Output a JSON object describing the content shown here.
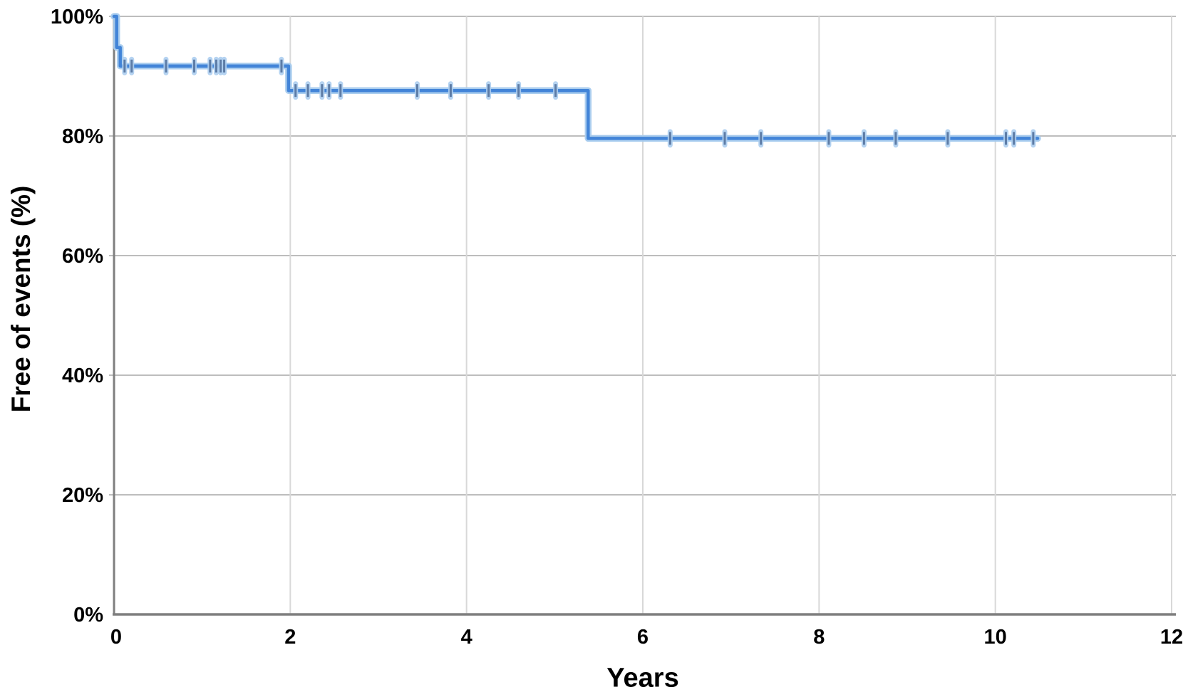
{
  "chart_data": {
    "type": "line",
    "subtype": "kaplan-meier-step-curve",
    "title": "",
    "xlabel": "Years",
    "ylabel": "Free of events (%)",
    "xlim": [
      0,
      12
    ],
    "ylim": [
      0,
      100
    ],
    "grid": true,
    "legend_position": "none",
    "x_tick_values": [
      0,
      2,
      4,
      6,
      8,
      10,
      12
    ],
    "x_tick_labels": [
      "0",
      "2",
      "4",
      "6",
      "8",
      "10",
      "12"
    ],
    "y_tick_values": [
      0,
      20,
      40,
      60,
      80,
      100
    ],
    "y_tick_labels": [
      "0%",
      "20%",
      "40%",
      "60%",
      "80%",
      "100%"
    ],
    "series": [
      {
        "name": "Free of events",
        "step_points": [
          [
            0,
            100
          ],
          [
            0.03,
            100
          ],
          [
            0.03,
            94.8
          ],
          [
            0.07,
            94.8
          ],
          [
            0.07,
            91.7
          ],
          [
            1.98,
            91.7
          ],
          [
            1.98,
            87.6
          ],
          [
            5.38,
            87.6
          ],
          [
            5.38,
            79.6
          ],
          [
            10.48,
            79.6
          ]
        ],
        "censor_marks": [
          [
            0.12,
            91.7
          ],
          [
            0.2,
            91.7
          ],
          [
            0.59,
            91.7
          ],
          [
            0.91,
            91.7
          ],
          [
            1.09,
            91.7
          ],
          [
            1.16,
            91.7
          ],
          [
            1.21,
            91.7
          ],
          [
            1.25,
            91.7
          ],
          [
            1.9,
            91.7
          ],
          [
            2.06,
            87.6
          ],
          [
            2.2,
            87.6
          ],
          [
            2.36,
            87.6
          ],
          [
            2.44,
            87.6
          ],
          [
            2.57,
            87.6
          ],
          [
            3.44,
            87.6
          ],
          [
            3.82,
            87.6
          ],
          [
            4.25,
            87.6
          ],
          [
            4.59,
            87.6
          ],
          [
            5.01,
            87.6
          ],
          [
            6.31,
            79.6
          ],
          [
            6.93,
            79.6
          ],
          [
            7.34,
            79.6
          ],
          [
            8.11,
            79.6
          ],
          [
            8.51,
            79.6
          ],
          [
            8.87,
            79.6
          ],
          [
            9.46,
            79.6
          ],
          [
            10.12,
            79.6
          ],
          [
            10.21,
            79.6
          ],
          [
            10.43,
            79.6
          ]
        ]
      }
    ],
    "colors": {
      "curve": "#4284d8",
      "curve_halo": "#a6cbee",
      "censor_tick": "#5d7ca6",
      "censor_halo": "#aecff0",
      "h_gridline": "#bdbdbd",
      "v_gridline": "#d8d8d8",
      "axis_line": "#7f7f7f",
      "text": "#000000",
      "background": "#ffffff"
    }
  }
}
